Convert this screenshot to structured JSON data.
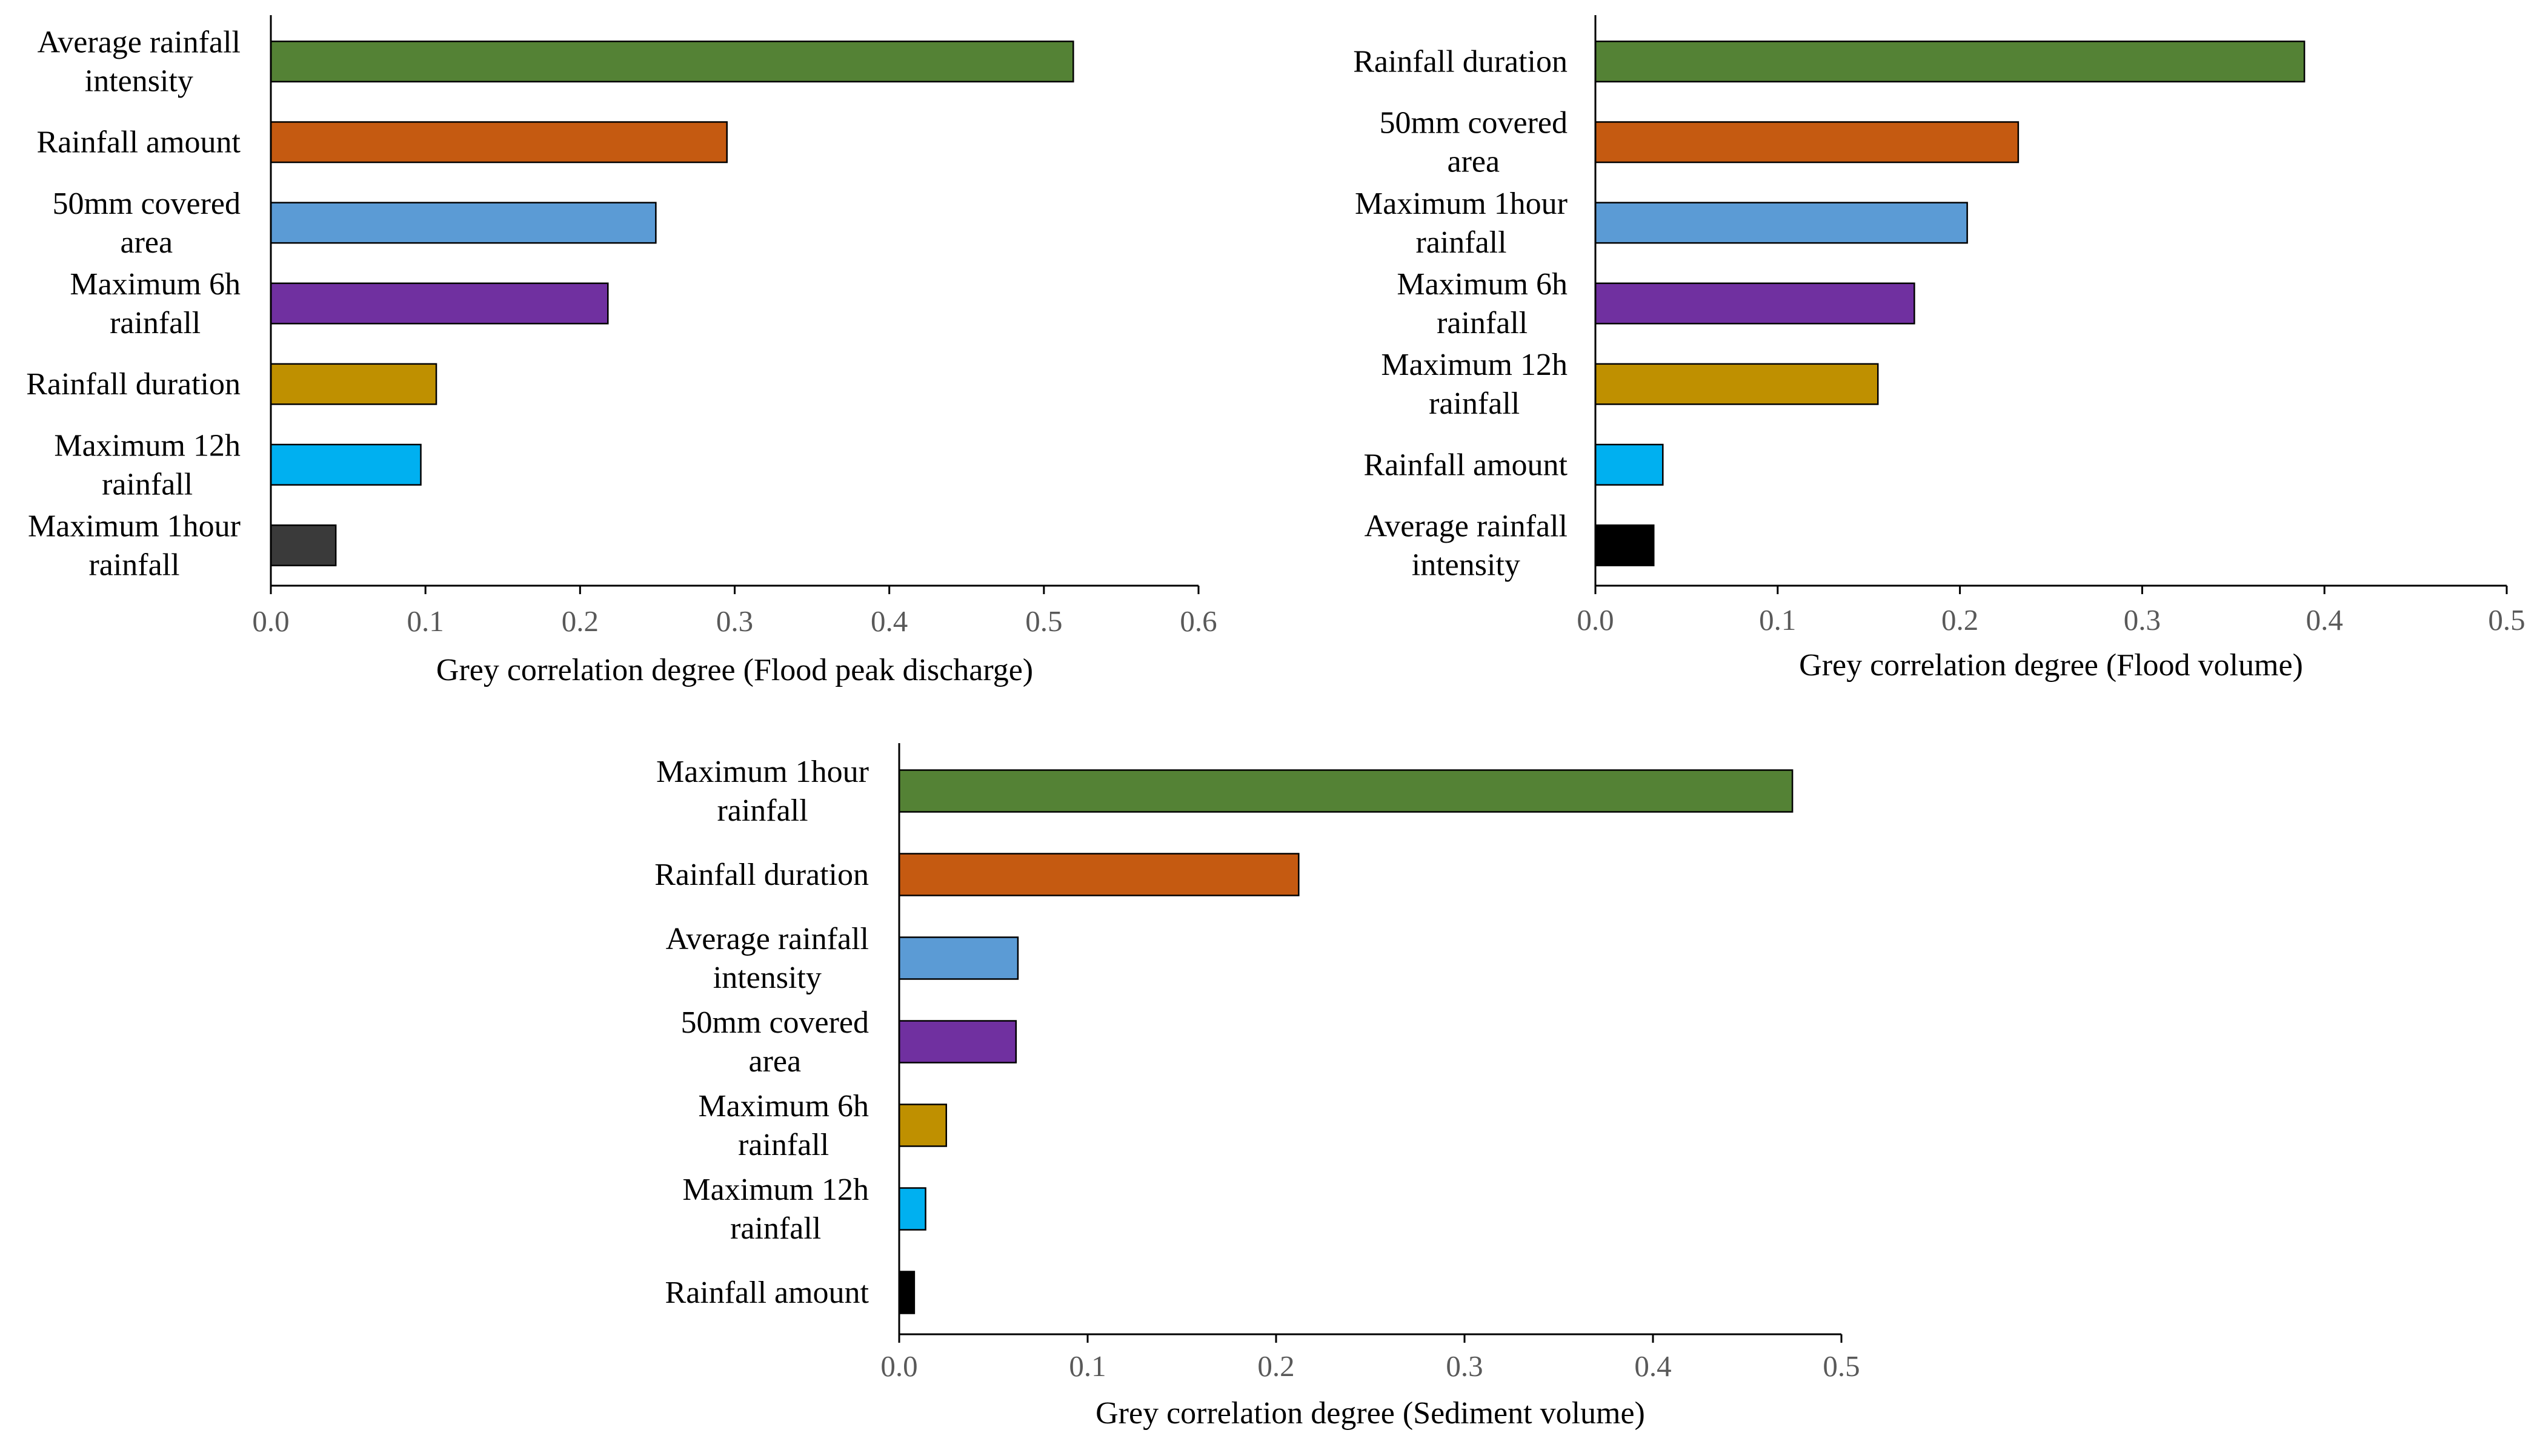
{
  "chart_data": [
    {
      "type": "bar",
      "orientation": "horizontal",
      "title": "",
      "xlabel": "Grey correlation degree (Flood peak discharge)",
      "ylabel": "",
      "xlim": [
        0,
        0.6
      ],
      "ticks": [
        "0.0",
        "0.1",
        "0.2",
        "0.3",
        "0.4",
        "0.5",
        "0.6"
      ],
      "grid": false,
      "categories": [
        [
          "Average rainfall",
          "intensity"
        ],
        [
          "Rainfall amount"
        ],
        [
          "50mm covered",
          "area"
        ],
        [
          "Maximum 6h",
          "rainfall"
        ],
        [
          "Rainfall duration"
        ],
        [
          "Maximum 12h",
          "rainfall"
        ],
        [
          "Maximum 1hour",
          "rainfall"
        ]
      ],
      "values": [
        0.519,
        0.295,
        0.249,
        0.218,
        0.107,
        0.097,
        0.042
      ],
      "colors": [
        "#548235",
        "#C55A11",
        "#5B9BD5",
        "#7030A0",
        "#BF9000",
        "#00B0F0",
        "#3A3A3A"
      ]
    },
    {
      "type": "bar",
      "orientation": "horizontal",
      "title": "",
      "xlabel": "Grey correlation degree (Flood volume)",
      "ylabel": "",
      "xlim": [
        0,
        0.5
      ],
      "ticks": [
        "0.0",
        "0.1",
        "0.2",
        "0.3",
        "0.4",
        "0.5"
      ],
      "grid": false,
      "categories": [
        [
          "Rainfall duration"
        ],
        [
          "50mm covered",
          "area"
        ],
        [
          "Maximum 1hour",
          "rainfall"
        ],
        [
          "Maximum 6h",
          "rainfall"
        ],
        [
          "Maximum 12h",
          "rainfall"
        ],
        [
          "Rainfall amount"
        ],
        [
          "Average rainfall",
          "intensity"
        ]
      ],
      "values": [
        0.389,
        0.232,
        0.204,
        0.175,
        0.155,
        0.037,
        0.032
      ],
      "colors": [
        "#548235",
        "#C55A11",
        "#5B9BD5",
        "#7030A0",
        "#BF9000",
        "#00B0F0",
        "#000000"
      ]
    },
    {
      "type": "bar",
      "orientation": "horizontal",
      "title": "",
      "xlabel": "Grey correlation degree (Sediment volume)",
      "ylabel": "",
      "xlim": [
        0,
        0.5
      ],
      "ticks": [
        "0.0",
        "0.1",
        "0.2",
        "0.3",
        "0.4",
        "0.5"
      ],
      "grid": false,
      "categories": [
        [
          "Maximum 1hour",
          "rainfall"
        ],
        [
          "Rainfall duration"
        ],
        [
          "Average rainfall",
          "intensity"
        ],
        [
          "50mm covered",
          "area"
        ],
        [
          "Maximum 6h",
          "rainfall"
        ],
        [
          "Maximum 12h",
          "rainfall"
        ],
        [
          "Rainfall amount"
        ]
      ],
      "values": [
        0.474,
        0.212,
        0.063,
        0.062,
        0.025,
        0.014,
        0.008
      ],
      "colors": [
        "#548235",
        "#C55A11",
        "#5B9BD5",
        "#7030A0",
        "#BF9000",
        "#00B0F0",
        "#000000"
      ]
    }
  ]
}
